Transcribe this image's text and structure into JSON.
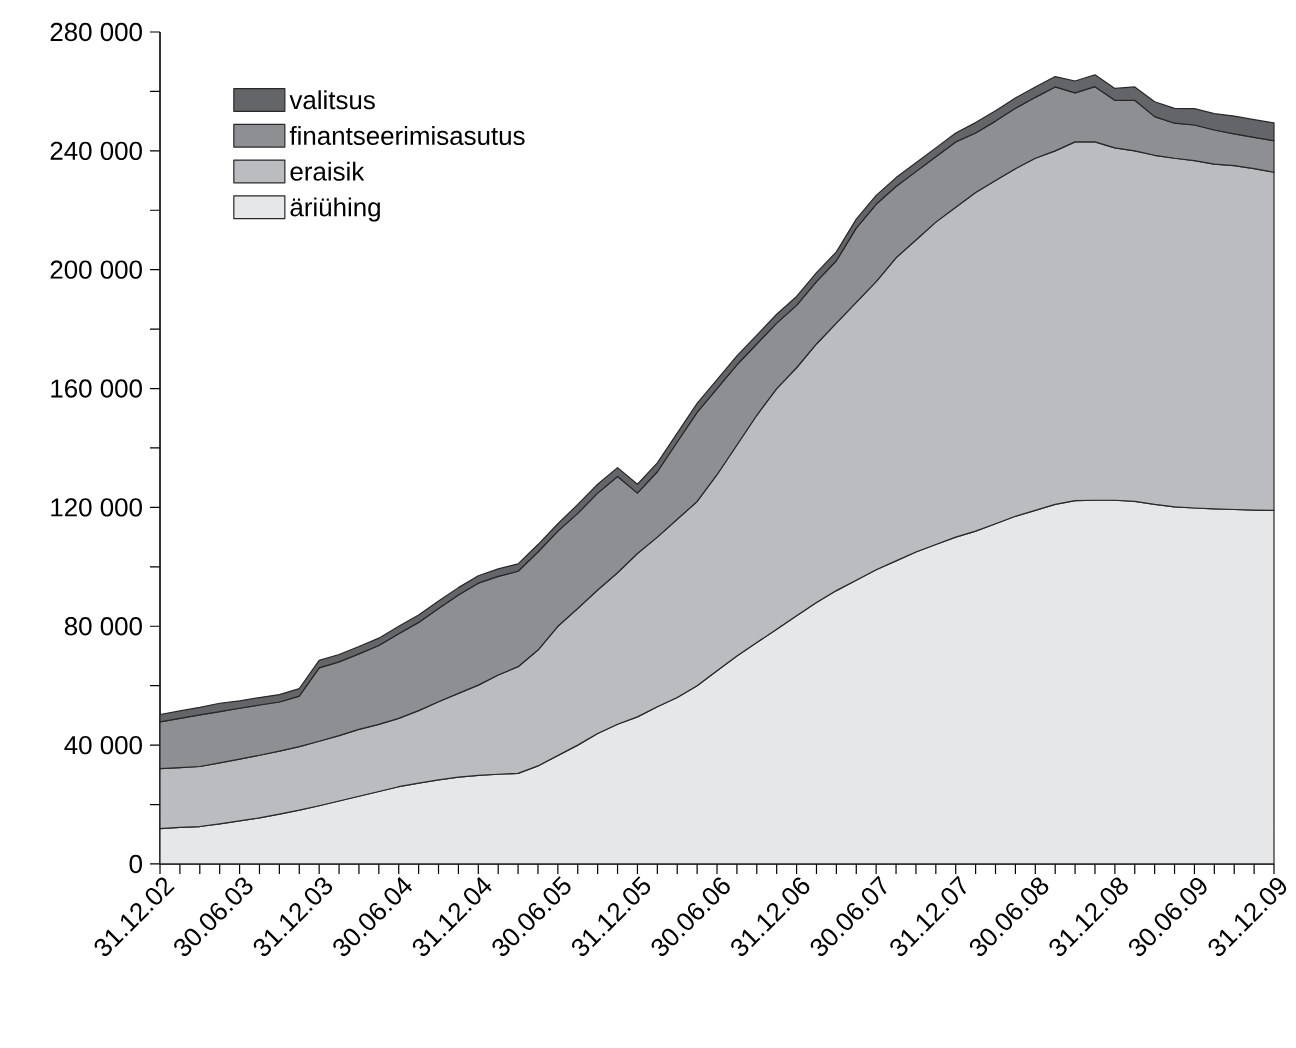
{
  "chart_data": {
    "type": "area",
    "stacked": true,
    "legend": "top left",
    "categories": [
      "31.12.02",
      null,
      null,
      null,
      "30.06.03",
      null,
      null,
      null,
      "31.12.03",
      null,
      null,
      null,
      "30.06.04",
      null,
      null,
      null,
      "31.12.04",
      null,
      null,
      null,
      "30.06.05",
      null,
      null,
      null,
      "31.12.05",
      null,
      null,
      null,
      "30.06.06",
      null,
      null,
      null,
      "31.12.06",
      null,
      null,
      null,
      "30.06.07",
      null,
      null,
      null,
      "31.12.07",
      null,
      null,
      null,
      "30.06.08",
      null,
      null,
      null,
      "31.12.08",
      null,
      null,
      null,
      "30.06.09",
      null,
      null,
      null,
      "31.12.09"
    ],
    "ylim": [
      0,
      280000
    ],
    "yticks": [
      {
        "value": 0,
        "label": "0"
      },
      {
        "value": 20000,
        "label": null
      },
      {
        "value": 40000,
        "label": "40 000"
      },
      {
        "value": 60000,
        "label": null
      },
      {
        "value": 80000,
        "label": "80 000"
      },
      {
        "value": 100000,
        "label": null
      },
      {
        "value": 120000,
        "label": "120 000"
      },
      {
        "value": 140000,
        "label": null
      },
      {
        "value": 160000,
        "label": "160 000"
      },
      {
        "value": 180000,
        "label": null
      },
      {
        "value": 200000,
        "label": "200 000"
      },
      {
        "value": 220000,
        "label": null
      },
      {
        "value": 240000,
        "label": "240 000"
      },
      {
        "value": 260000,
        "label": null
      },
      {
        "value": 280000,
        "label": "280 000"
      }
    ],
    "series": [
      {
        "name": "äriühing",
        "color": "#e6e7e9",
        "values": [
          11900,
          12300,
          12600,
          13500,
          14500,
          15500,
          16800,
          18100,
          19600,
          21200,
          22800,
          24400,
          26000,
          27200,
          28300,
          29200,
          29800,
          30200,
          30500,
          33000,
          36500,
          40000,
          43900,
          47000,
          49500,
          52900,
          56000,
          60000,
          65000,
          70000,
          74500,
          79000,
          83500,
          88000,
          92000,
          95500,
          99000,
          102000,
          105000,
          107500,
          110000,
          112000,
          114500,
          117000,
          119000,
          121000,
          122300,
          122400,
          122400,
          122000,
          121000,
          120200,
          119800,
          119500,
          119300,
          119100,
          119000
        ]
      },
      {
        "name": "eraisik",
        "color": "#bbbcc0",
        "values": [
          20200,
          20100,
          20200,
          20500,
          20800,
          21100,
          21200,
          21400,
          21700,
          22000,
          22500,
          22600,
          23000,
          24400,
          26300,
          28200,
          30400,
          33400,
          35900,
          39000,
          43500,
          46000,
          48300,
          51000,
          55000,
          57100,
          60000,
          62000,
          66000,
          71000,
          76500,
          81000,
          83500,
          87000,
          90000,
          93500,
          97000,
          102000,
          105000,
          108500,
          111000,
          114000,
          115500,
          117000,
          118500,
          119000,
          120700,
          120600,
          118600,
          118000,
          117500,
          117300,
          116900,
          116000,
          115700,
          114900,
          113800
        ]
      },
      {
        "name": "finantseerimisasutus",
        "color": "#8e8f93",
        "values": [
          15700,
          16600,
          17400,
          17300,
          17100,
          16900,
          16500,
          17000,
          24700,
          24800,
          25400,
          26500,
          28500,
          29700,
          31400,
          33100,
          34300,
          33200,
          32100,
          33000,
          32000,
          32000,
          32600,
          32400,
          20300,
          22000,
          26000,
          30000,
          29000,
          27000,
          24000,
          22000,
          21000,
          21000,
          21000,
          25000,
          26000,
          24000,
          23000,
          22000,
          22000,
          20000,
          20000,
          20300,
          20500,
          21500,
          16500,
          18600,
          16000,
          17000,
          13000,
          11800,
          12000,
          11500,
          10700,
          10500,
          10600
        ]
      },
      {
        "name": "valitsus",
        "color": "#646569",
        "values": [
          2500,
          2500,
          2500,
          2800,
          2500,
          2500,
          2500,
          2500,
          2500,
          2500,
          2500,
          2500,
          2500,
          2500,
          2500,
          2500,
          2500,
          2500,
          2500,
          2500,
          2500,
          3000,
          3000,
          3000,
          3000,
          3000,
          3000,
          3000,
          3000,
          3000,
          3000,
          3000,
          3000,
          3000,
          3000,
          3000,
          3000,
          3000,
          3000,
          3000,
          3000,
          3500,
          3500,
          3500,
          3500,
          3500,
          4000,
          4000,
          4000,
          4500,
          5000,
          5000,
          5500,
          5500,
          6000,
          6000,
          6000
        ]
      }
    ]
  }
}
